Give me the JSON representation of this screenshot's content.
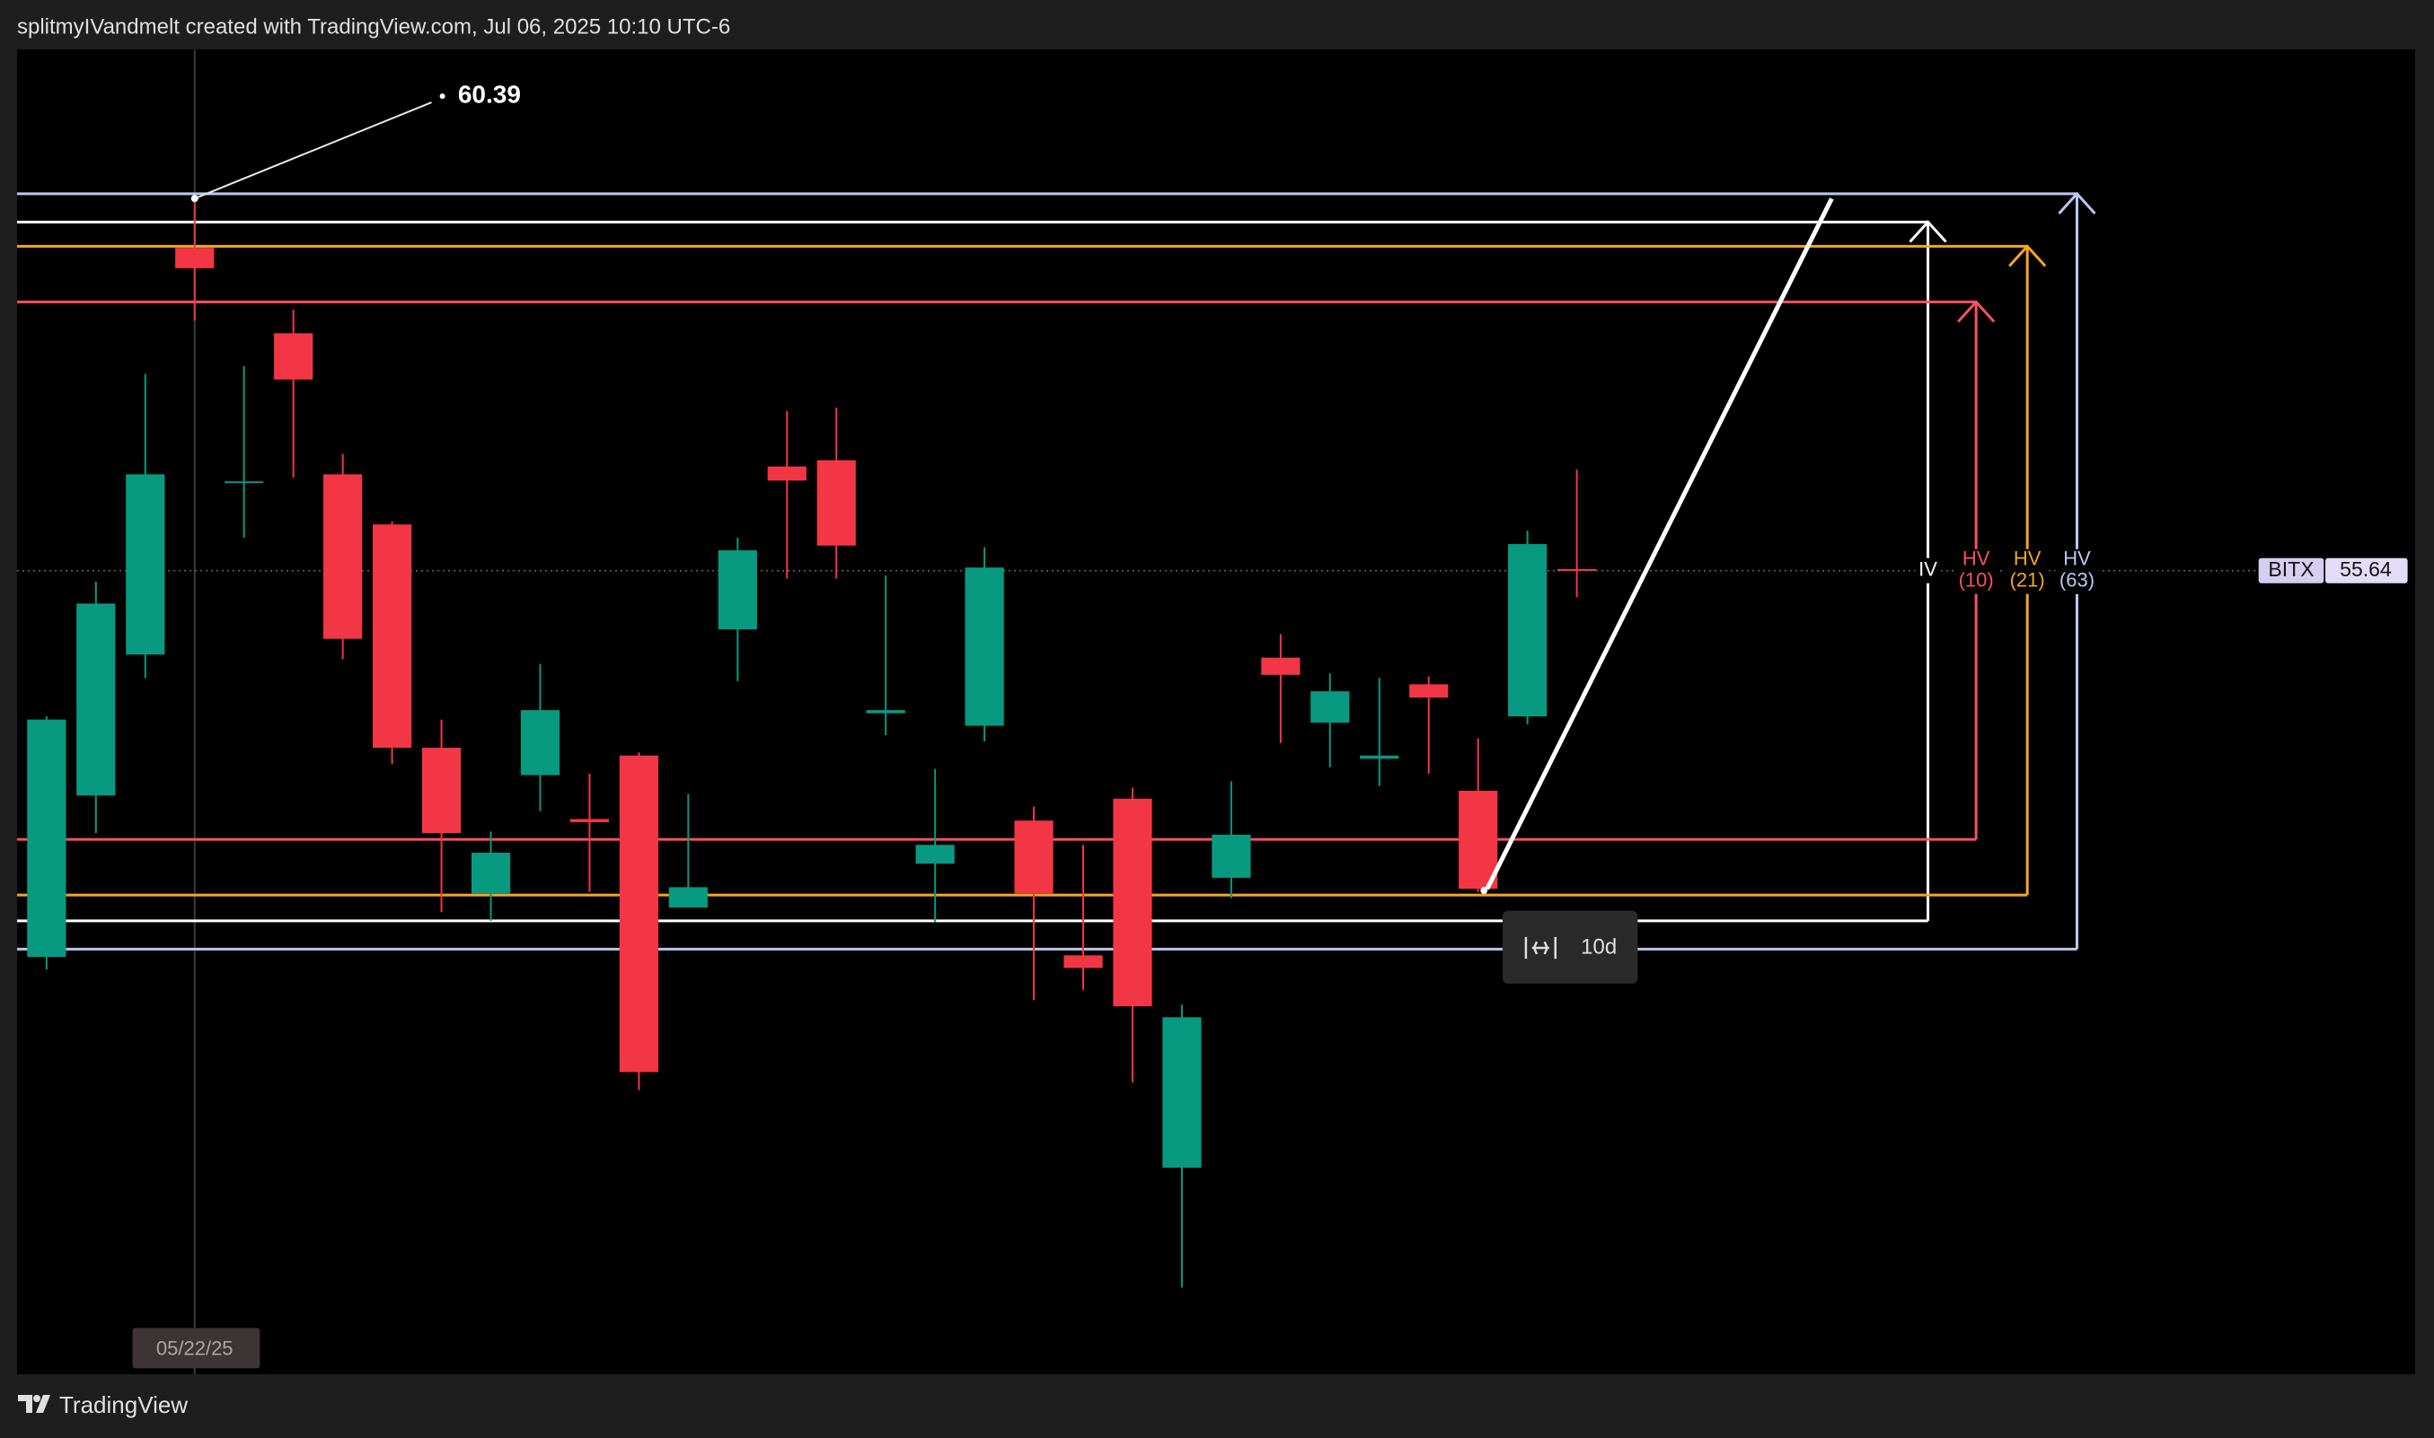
{
  "header": {
    "text": "splitmyIVandmelt created with TradingView.com, Jul 06, 2025 10:10 UTC-6"
  },
  "footer": {
    "brand": "TradingView"
  },
  "chart_data": {
    "type": "candlestick",
    "categories": [
      null,
      null,
      null,
      "05/22/25",
      null,
      null,
      null,
      null,
      null,
      null,
      null,
      null,
      null,
      null,
      null,
      null,
      null,
      null,
      null,
      null,
      null,
      null,
      null,
      null,
      null,
      null,
      null,
      null,
      null,
      null,
      null,
      null
    ],
    "open": [
      50.71,
      52.77,
      54.57,
      59.76,
      56.76,
      58.67,
      56.87,
      56.23,
      53.38,
      51.52,
      53.03,
      52.47,
      53.28,
      51.34,
      54.89,
      56.97,
      57.05,
      53.82,
      51.9,
      53.66,
      52.45,
      50.73,
      52.73,
      48.02,
      51.72,
      54.53,
      53.7,
      53.24,
      54.19,
      52.83,
      53.78,
      55.66
    ],
    "high": [
      53.78,
      55.5,
      58.15,
      60.39,
      58.25,
      58.97,
      57.13,
      56.27,
      53.74,
      52.31,
      54.45,
      53.05,
      53.32,
      52.79,
      56.06,
      57.68,
      57.72,
      55.58,
      53.11,
      55.94,
      52.63,
      52.14,
      52.87,
      50.1,
      52.95,
      54.83,
      54.33,
      54.27,
      54.29,
      53.5,
      56.15,
      56.93
    ],
    "low": [
      50.55,
      52.29,
      54.27,
      58.83,
      56.06,
      56.83,
      54.51,
      53.17,
      51.28,
      51.17,
      52.57,
      51.54,
      49.01,
      51.34,
      54.23,
      55.54,
      55.54,
      53.54,
      51.15,
      53.46,
      50.16,
      50.29,
      49.11,
      46.49,
      51.46,
      53.44,
      53.13,
      52.89,
      53.05,
      51.54,
      53.68,
      55.3
    ],
    "close": [
      53.74,
      55.22,
      56.87,
      59.5,
      56.78,
      58.08,
      54.77,
      53.38,
      52.29,
      52.04,
      53.86,
      52.43,
      49.24,
      51.6,
      55.9,
      56.79,
      55.96,
      53.86,
      52.14,
      55.68,
      51.52,
      50.57,
      50.08,
      49.94,
      52.27,
      54.31,
      54.1,
      53.28,
      54.02,
      51.58,
      55.98,
      55.64
    ],
    "up_color": "#089981",
    "down_color": "#f23645",
    "ylim": [
      45.38,
      62.29
    ],
    "symbol": "BITX",
    "last_price": 55.64,
    "annotation": {
      "value": 60.39
    },
    "bands": [
      {
        "name": "IV",
        "color": "#ffffff",
        "upper": 60.09,
        "lower": 51.17
      },
      {
        "name": "HV",
        "period": "(10)",
        "color": "#f7525f",
        "upper": 59.07,
        "lower": 52.21
      },
      {
        "name": "HV",
        "period": "(21)",
        "color": "#f5a623",
        "upper": 59.78,
        "lower": 51.5
      },
      {
        "name": "HV",
        "period": "(63)",
        "color": "#b8c8ee",
        "upper": 60.45,
        "lower": 50.81
      }
    ],
    "measure_label": "10d"
  }
}
